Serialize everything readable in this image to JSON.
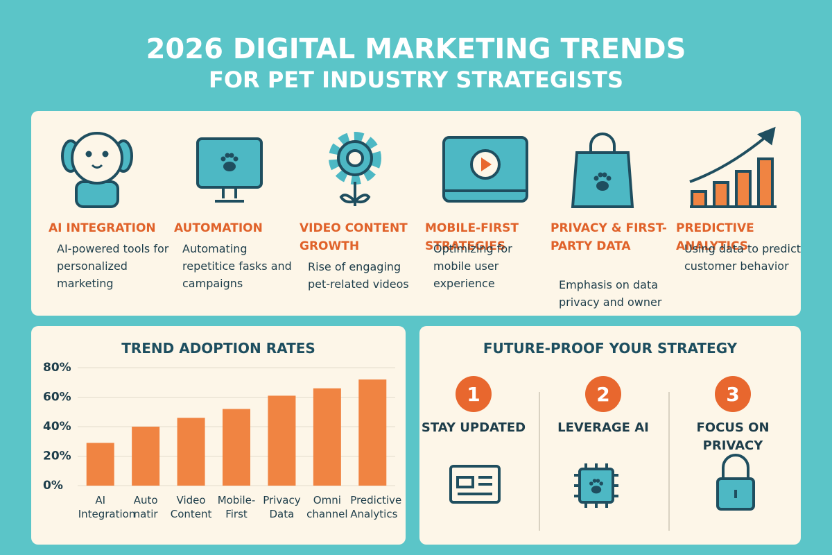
{
  "header": {
    "title": "2026 DIGITAL MARKETING TRENDS",
    "subtitle": "FOR PET INDUSTRY STRATEGISTS"
  },
  "trends": [
    {
      "title": "AI INTEGRATION",
      "description": "AI-powered tools for personalized marketing"
    },
    {
      "title": "AUTOMATION",
      "description": "Automating repetitice fasks and campaigns"
    },
    {
      "title": "VIDEO CONTENT GROWTH",
      "description": "Rise of engaging pet-related videos"
    },
    {
      "title": "MOBILE-FIRST STRATEGIES",
      "description": "Optimizing for mobile user experience"
    },
    {
      "title": "PRIVACY & FIRST-PARTY DATA",
      "description": "Emphasis on data privacy and owner"
    },
    {
      "title": "PREDICTIVE ANALYTICS",
      "description": "Using data to predict customer behavior"
    }
  ],
  "chart_data": {
    "type": "bar",
    "title": "TREND ADOPTION RATES",
    "categories": [
      "AI Integration",
      "Auto natir",
      "Video Content",
      "Mobile-First",
      "Privacy Data",
      "Omni channel",
      "Predictive Analytics"
    ],
    "values": [
      29,
      40,
      46,
      52,
      61,
      66,
      72
    ],
    "color": "#f08442",
    "ylim": [
      0,
      80
    ],
    "yticks": [
      {
        "value": 0,
        "label": "0%"
      },
      {
        "value": 20,
        "label": "20%"
      },
      {
        "value": 40,
        "label": "40%"
      },
      {
        "value": 60,
        "label": "60%"
      },
      {
        "value": 80,
        "label": "80%"
      }
    ],
    "grid": true
  },
  "strategy": {
    "title": "FUTURE-PROOF YOUR STRATEGY",
    "steps": [
      {
        "number": "1",
        "label": "STAY UPDATED"
      },
      {
        "number": "2",
        "label": "LEVERAGE AI"
      },
      {
        "number": "3",
        "label": "FOCUS ON PRIVACY"
      }
    ]
  }
}
